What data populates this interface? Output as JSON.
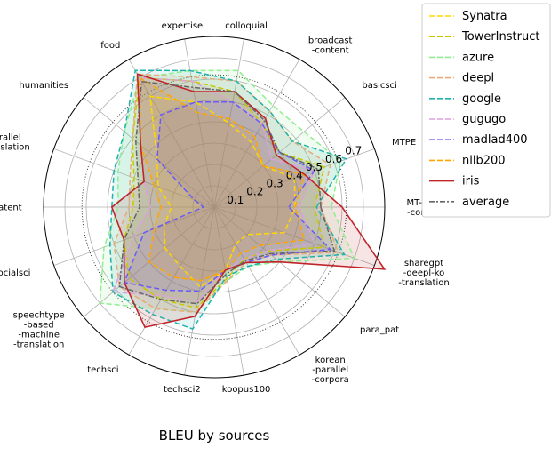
{
  "chart_data": {
    "type": "radar",
    "title": "BLEU by sources",
    "categories": [
      "MT-new\n-corpus",
      "MTPE",
      "basicsci",
      "broadcast\n-content",
      "colloquial",
      "expertise",
      "food",
      "humanities",
      "parallel\n-translation",
      "patent",
      "socialsci",
      "speechtype\n-based\n-machine\n-translation",
      "techsci",
      "techsci2",
      "koopus100",
      "korean\n-parallel\n-corpora",
      "para_pat",
      "sharegpt\n-deepl-ko\n-translation"
    ],
    "r_ticks": [
      "0.1",
      "0.2",
      "0.3",
      "0.4",
      "0.5",
      "0.6",
      "0.7"
    ],
    "rlim": [
      0,
      0.8
    ],
    "reference_circle": 0.62,
    "legend_position": "outside-top-right",
    "grid": true,
    "series": [
      {
        "name": "Synatra",
        "color": "#ffd700",
        "dash": "6,3",
        "values": [
          0.38,
          0.4,
          0.3,
          0.35,
          0.4,
          0.5,
          0.6,
          0.35,
          0.28,
          0.2,
          0.25,
          0.3,
          0.32,
          0.38,
          0.3,
          0.2,
          0.2,
          0.35
        ]
      },
      {
        "name": "TowerInstruct",
        "color": "#c8c800",
        "dash": "6,3",
        "values": [
          0.47,
          0.55,
          0.4,
          0.45,
          0.55,
          0.6,
          0.7,
          0.5,
          0.4,
          0.38,
          0.45,
          0.52,
          0.5,
          0.48,
          0.34,
          0.28,
          0.32,
          0.55
        ]
      },
      {
        "name": "azure",
        "color": "#90ee90",
        "dash": "6,3",
        "values": [
          0.55,
          0.63,
          0.55,
          0.55,
          0.65,
          0.65,
          0.7,
          0.55,
          0.48,
          0.45,
          0.55,
          0.7,
          0.55,
          0.5,
          0.35,
          0.32,
          0.4,
          0.7
        ]
      },
      {
        "name": "deepl",
        "color": "#e9a97a",
        "dash": "6,3",
        "values": [
          0.5,
          0.58,
          0.48,
          0.52,
          0.6,
          0.62,
          0.72,
          0.5,
          0.42,
          0.4,
          0.5,
          0.58,
          0.55,
          0.5,
          0.35,
          0.3,
          0.35,
          0.62
        ]
      },
      {
        "name": "google",
        "color": "#20b2aa",
        "dash": "6,3",
        "values": [
          0.48,
          0.66,
          0.48,
          0.52,
          0.6,
          0.65,
          0.74,
          0.55,
          0.5,
          0.48,
          0.52,
          0.62,
          0.58,
          0.58,
          0.33,
          0.32,
          0.38,
          0.65
        ]
      },
      {
        "name": "gugugo",
        "color": "#dda0dd",
        "dash": "6,3",
        "values": [
          0.4,
          0.5,
          0.35,
          0.45,
          0.5,
          0.6,
          0.7,
          0.45,
          0.35,
          0.3,
          0.4,
          0.62,
          0.48,
          0.45,
          0.3,
          0.28,
          0.32,
          0.5
        ]
      },
      {
        "name": "madlad400",
        "color": "#6a5af9",
        "dash": "6,3",
        "values": [
          0.35,
          0.5,
          0.4,
          0.45,
          0.5,
          0.5,
          0.5,
          0.35,
          0.1,
          0.05,
          0.35,
          0.55,
          0.45,
          0.4,
          0.3,
          0.3,
          0.35,
          0.58
        ]
      },
      {
        "name": "nllb200",
        "color": "#ffa500",
        "dash": "6,3",
        "values": [
          0.38,
          0.45,
          0.3,
          0.38,
          0.42,
          0.45,
          0.7,
          0.45,
          0.3,
          0.25,
          0.3,
          0.4,
          0.38,
          0.35,
          0.3,
          0.25,
          0.28,
          0.45
        ]
      },
      {
        "name": "iris",
        "color": "#c0242a",
        "dash": "",
        "values": [
          0.6,
          0.45,
          0.38,
          0.48,
          0.55,
          0.55,
          0.72,
          0.45,
          0.35,
          0.48,
          0.45,
          0.55,
          0.65,
          0.52,
          0.3,
          0.3,
          0.4,
          0.85
        ]
      },
      {
        "name": "average",
        "color": "#666666",
        "dash": "6,2,2,2",
        "values": [
          0.5,
          0.52,
          0.4,
          0.47,
          0.55,
          0.57,
          0.68,
          0.48,
          0.38,
          0.35,
          0.45,
          0.58,
          0.5,
          0.46,
          0.32,
          0.29,
          0.34,
          0.6
        ]
      }
    ]
  }
}
